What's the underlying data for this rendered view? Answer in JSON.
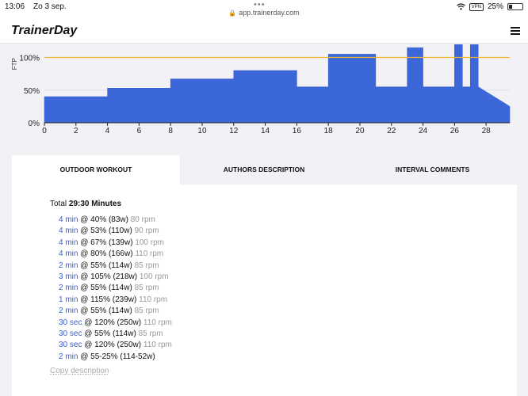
{
  "status_bar": {
    "time": "13:06",
    "date": "Zo 3 sep.",
    "url": "app.trainerday.com",
    "battery": "25%",
    "vpn_label": "VPN",
    "battery_level": 0.25
  },
  "header": {
    "logo": "TrainerDay"
  },
  "chart_data": {
    "type": "area",
    "ylabel": "FTP",
    "y_ticks": [
      "0%",
      "50%",
      "100%"
    ],
    "x_ticks": [
      "0",
      "2",
      "4",
      "6",
      "8",
      "10",
      "12",
      "14",
      "16",
      "18",
      "20",
      "22",
      "24",
      "26",
      "28"
    ],
    "xlim": [
      0,
      29.5
    ],
    "ylim": [
      0,
      120
    ],
    "ftp_line": 100,
    "colors": {
      "fill": "#3b67d8",
      "ftp_line": "#f2b233"
    },
    "segments": [
      {
        "start": 0,
        "end": 4,
        "from": 40,
        "to": 40
      },
      {
        "start": 4,
        "end": 8,
        "from": 53,
        "to": 53
      },
      {
        "start": 8,
        "end": 12,
        "from": 67,
        "to": 67
      },
      {
        "start": 12,
        "end": 16,
        "from": 80,
        "to": 80
      },
      {
        "start": 16,
        "end": 18,
        "from": 55,
        "to": 55
      },
      {
        "start": 18,
        "end": 21,
        "from": 105,
        "to": 105
      },
      {
        "start": 21,
        "end": 23,
        "from": 55,
        "to": 55
      },
      {
        "start": 23,
        "end": 24,
        "from": 115,
        "to": 115
      },
      {
        "start": 24,
        "end": 26,
        "from": 55,
        "to": 55
      },
      {
        "start": 26,
        "end": 26.5,
        "from": 120,
        "to": 120
      },
      {
        "start": 26.5,
        "end": 27,
        "from": 55,
        "to": 55
      },
      {
        "start": 27,
        "end": 27.5,
        "from": 120,
        "to": 120
      },
      {
        "start": 27.5,
        "end": 29.5,
        "from": 55,
        "to": 25
      }
    ]
  },
  "tabs": [
    {
      "label": "OUTDOOR WORKOUT",
      "active": true
    },
    {
      "label": "AUTHORS DESCRIPTION",
      "active": false
    },
    {
      "label": "INTERVAL COMMENTS",
      "active": false
    }
  ],
  "workout": {
    "total_prefix": "Total",
    "total_value": "29:30 Minutes",
    "intervals": [
      {
        "duration": "4 min",
        "power": "@ 40% (83w)",
        "cadence": "80 rpm"
      },
      {
        "duration": "4 min",
        "power": "@ 53% (110w)",
        "cadence": "90 rpm"
      },
      {
        "duration": "4 min",
        "power": "@ 67% (139w)",
        "cadence": "100 rpm"
      },
      {
        "duration": "4 min",
        "power": "@ 80% (166w)",
        "cadence": "110 rpm"
      },
      {
        "duration": "2 min",
        "power": "@ 55% (114w)",
        "cadence": "85 rpm"
      },
      {
        "duration": "3 min",
        "power": "@ 105% (218w)",
        "cadence": "100 rpm"
      },
      {
        "duration": "2 min",
        "power": "@ 55% (114w)",
        "cadence": "85 rpm"
      },
      {
        "duration": "1 min",
        "power": "@ 115% (239w)",
        "cadence": "110 rpm"
      },
      {
        "duration": "2 min",
        "power": "@ 55% (114w)",
        "cadence": "85 rpm"
      },
      {
        "duration": "30 sec",
        "power": "@ 120% (250w)",
        "cadence": "110 rpm"
      },
      {
        "duration": "30 sec",
        "power": "@ 55% (114w)",
        "cadence": "85 rpm"
      },
      {
        "duration": "30 sec",
        "power": "@ 120% (250w)",
        "cadence": "110 rpm"
      },
      {
        "duration": "2 min",
        "power": "@ 55-25% (114-52w)",
        "cadence": ""
      }
    ],
    "copy_label": "Copy description"
  }
}
